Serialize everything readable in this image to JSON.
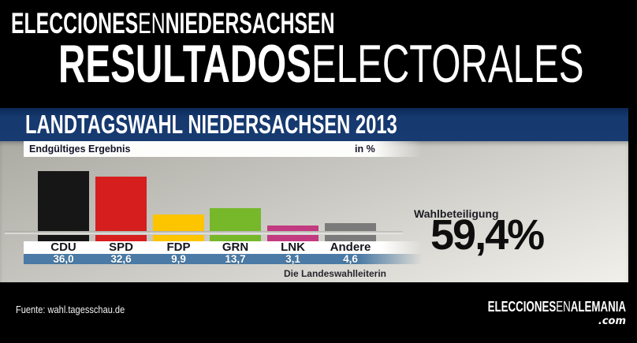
{
  "banner": {
    "line1": {
      "part1": "ELECCIONES",
      "part2": "EN",
      "part3": "NIEDERSACHSEN"
    },
    "line2": {
      "part1": "RESULTADOS",
      "part2": "ELECTORALES"
    }
  },
  "infographic": {
    "title": "LANDTAGSWAHL NIEDERSACHSEN 2013",
    "subtitle": "Endgültiges Ergebnis",
    "unit_label": "in %",
    "source": "Die Landeswahlleiterin",
    "turnout": {
      "label": "Wahlbeteiligung",
      "value": "59,4%"
    }
  },
  "chart_data": {
    "type": "bar",
    "title": "Landtagswahl Niedersachsen 2013 — Endgültiges Ergebnis",
    "subtitle": "Endgültiges Ergebnis",
    "unit": "in %",
    "categories": [
      "CDU",
      "SPD",
      "FDP",
      "GRN",
      "LNK",
      "Andere"
    ],
    "values": [
      36.0,
      32.6,
      9.9,
      13.7,
      3.1,
      4.6
    ],
    "value_labels": [
      "36,0",
      "32,6",
      "9,9",
      "13,7",
      "3,1",
      "4,6"
    ],
    "colors": [
      "#161616",
      "#d71e1e",
      "#fdc400",
      "#76b82a",
      "#c23a80",
      "#7b7b7b"
    ],
    "ylim": [
      0,
      40
    ],
    "grid": false,
    "legend": false,
    "turnout_percent": 59.4,
    "source": "Die Landeswahlleiterin"
  },
  "footer": {
    "source": "Fuente: wahl.tagesschau.de",
    "logo": {
      "part1": "ELECCIONES",
      "part2": "EN",
      "part3": "ALEMANIA",
      "suffix": ".com"
    }
  },
  "colors": {
    "header_blue": "#16396f",
    "value_band_blue": "#4a7aa5",
    "background_black": "#000000",
    "panel_gray": "#c9c8c2"
  }
}
